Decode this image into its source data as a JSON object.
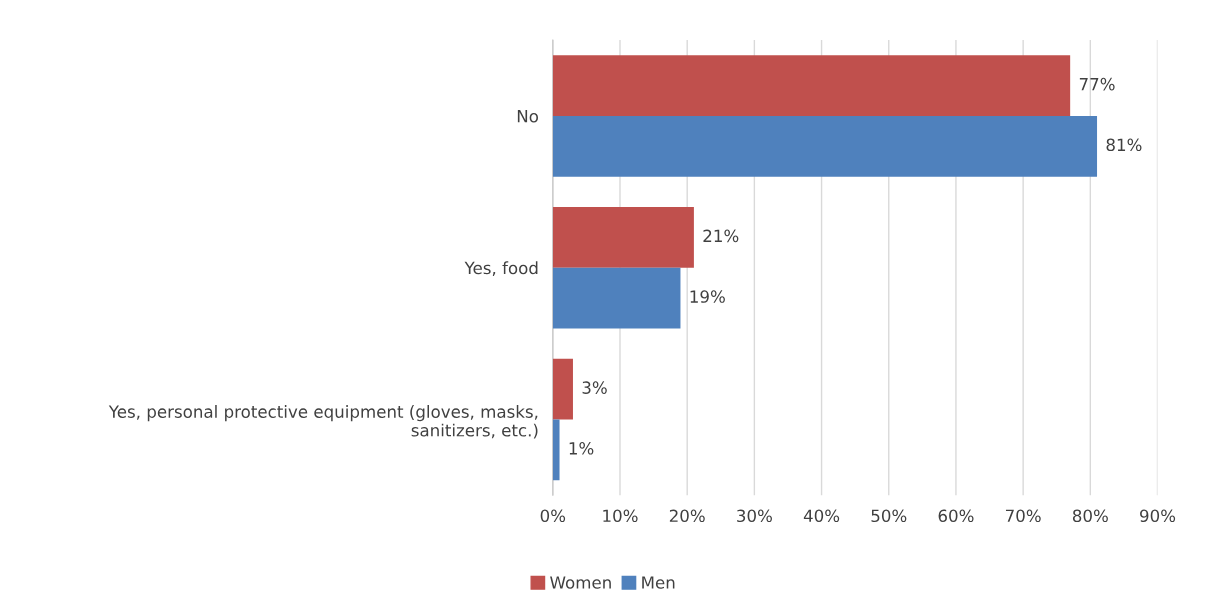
{
  "chart_data": {
    "type": "bar",
    "orientation": "horizontal",
    "categories": [
      "No",
      "Yes, food",
      "Yes, personal protective equipment (gloves, masks,\nsanitizers, etc.)"
    ],
    "series": [
      {
        "name": "Women",
        "color": "#c0504d",
        "values": [
          77,
          21,
          3
        ],
        "value_labels": [
          "77%",
          "21%",
          "3%"
        ]
      },
      {
        "name": "Men",
        "color": "#4f81bd",
        "values": [
          81,
          19,
          1
        ],
        "value_labels": [
          "81%",
          "19%",
          "1%"
        ]
      }
    ],
    "xlim": [
      0,
      90
    ],
    "xticks": [
      {
        "value": 0,
        "label": "0%"
      },
      {
        "value": 10,
        "label": "10%"
      },
      {
        "value": 20,
        "label": "20%"
      },
      {
        "value": 30,
        "label": "30%"
      },
      {
        "value": 40,
        "label": "40%"
      },
      {
        "value": 50,
        "label": "50%"
      },
      {
        "value": 60,
        "label": "60%"
      },
      {
        "value": 70,
        "label": "70%"
      },
      {
        "value": 80,
        "label": "80%"
      },
      {
        "value": 90,
        "label": "90%"
      }
    ],
    "grid": "x",
    "legend": "bottom"
  }
}
